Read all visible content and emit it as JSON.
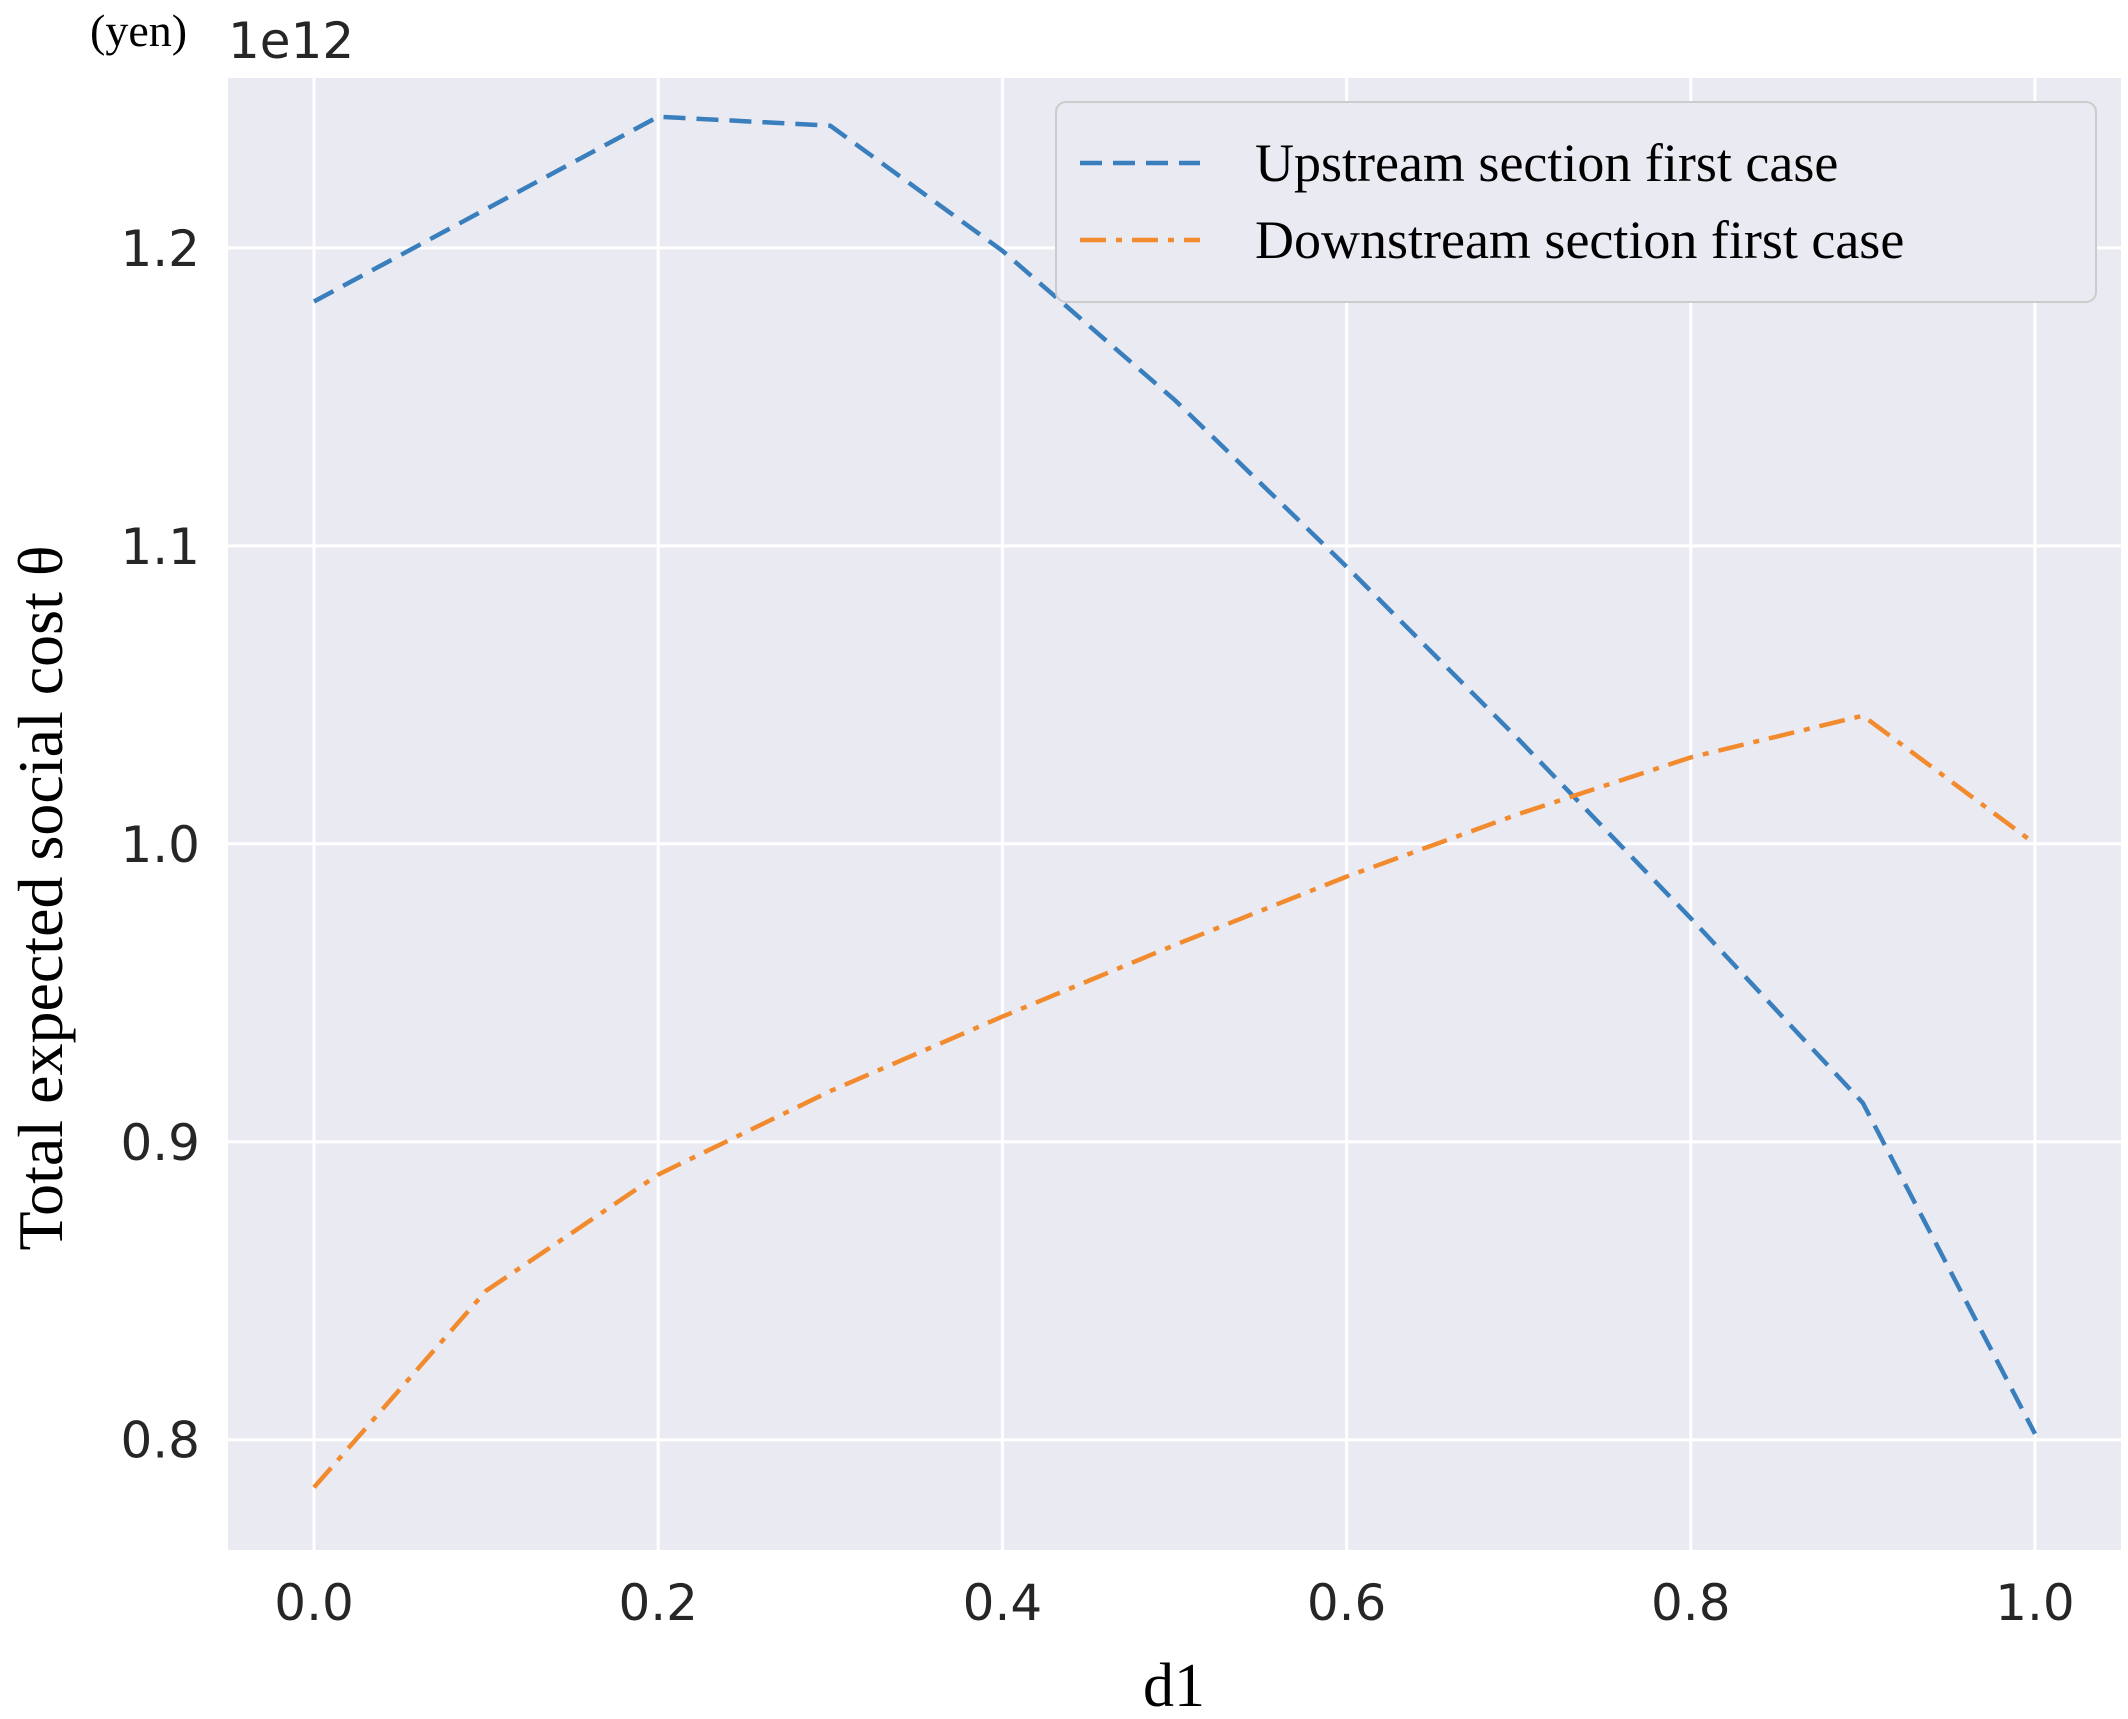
{
  "chart_data": {
    "type": "line",
    "xlabel": "d1",
    "ylabel": "Total expected social cost θ",
    "y_unit": "(yen)",
    "y_offset_label": "1e12",
    "x": [
      0.0,
      0.1,
      0.2,
      0.3,
      0.4,
      0.5,
      0.6,
      0.7,
      0.8,
      0.9,
      1.0
    ],
    "xlim": [
      -0.05,
      1.05
    ],
    "ylim": [
      0.763,
      1.257
    ],
    "x_ticks": [
      0.0,
      0.2,
      0.4,
      0.6,
      0.8,
      1.0
    ],
    "x_tick_labels": [
      "0.0",
      "0.2",
      "0.4",
      "0.6",
      "0.8",
      "1.0"
    ],
    "y_ticks": [
      0.8,
      0.9,
      1.0,
      1.1,
      1.2
    ],
    "y_tick_labels": [
      "0.8",
      "0.9",
      "1.0",
      "1.1",
      "1.2"
    ],
    "grid": true,
    "legend_position": "top-right",
    "background_color": "#eaeaf2",
    "grid_color": "#ffffff",
    "series": [
      {
        "name": "Upstream section first case",
        "color": "#3a7fbd",
        "line_style": "dashed",
        "values": [
          1.182,
          1.213,
          1.244,
          1.241,
          1.199,
          1.149,
          1.093,
          1.035,
          0.975,
          0.913,
          0.802
        ]
      },
      {
        "name": "Downstream section first case",
        "color": "#f28a2e",
        "line_style": "dashdot",
        "values": [
          0.784,
          0.85,
          0.889,
          0.917,
          0.942,
          0.966,
          0.989,
          1.01,
          1.029,
          1.043,
          1.0
        ]
      }
    ]
  }
}
